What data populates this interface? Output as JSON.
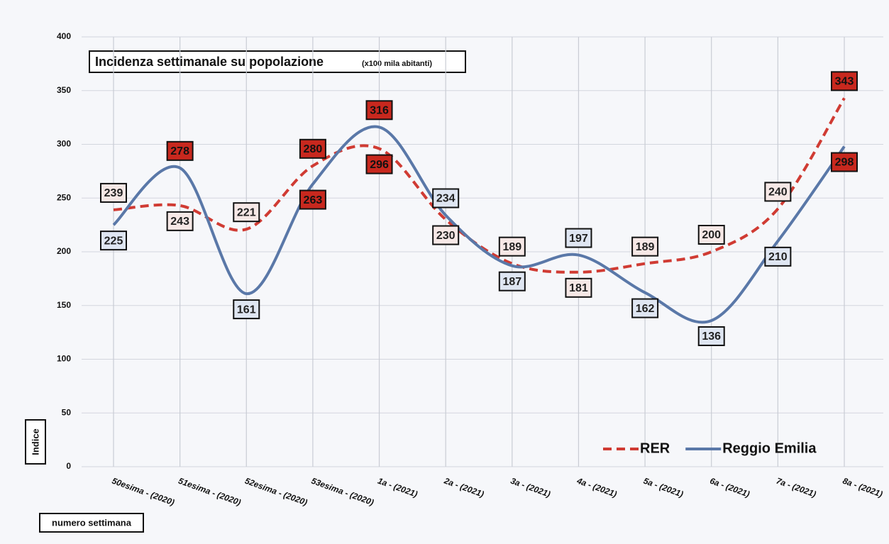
{
  "chart_data": {
    "type": "line",
    "title": "Incidenza settimanale su popolazione",
    "subtitle": "(x100 mila abitanti)",
    "y_label": "Indice",
    "x_label": "numero settimana",
    "categories": [
      "50esima - (2020)",
      "51esima - (2020)",
      "52esima - (2020)",
      "53esima - (2020)",
      "1a - (2021)",
      "2a - (2021)",
      "3a - (2021)",
      "4a - (2021)",
      "5a - (2021)",
      "6a - (2021)",
      "7a - (2021)",
      "8a - (2021)"
    ],
    "series": [
      {
        "name": "RER",
        "color": "#d03b33",
        "dashed": true,
        "values": [
          239,
          243,
          221,
          280,
          296,
          230,
          189,
          181,
          189,
          200,
          240,
          343
        ],
        "label_fill": [
          "#f6e8e6",
          "#f6e8e6",
          "#f6e8e6",
          "#c8281e",
          "#c8281e",
          "#f6e8e6",
          "#f6e8e6",
          "#f6e8e6",
          "#f6e8e6",
          "#f6e8e6",
          "#f6e8e6",
          "#c8281e"
        ]
      },
      {
        "name": "Reggio Emilia",
        "color": "#5a78a8",
        "dashed": false,
        "values": [
          225,
          278,
          161,
          263,
          316,
          234,
          187,
          197,
          162,
          136,
          210,
          298
        ],
        "label_fill": [
          "#dfe6f2",
          "#c8281e",
          "#dfe6f2",
          "#c8281e",
          "#c8281e",
          "#dfe6f2",
          "#dfe6f2",
          "#dfe6f2",
          "#dfe6f2",
          "#dfe6f2",
          "#dfe6f2",
          "#c8281e"
        ]
      }
    ],
    "ylim": [
      0,
      400
    ],
    "yticks": [
      0,
      50,
      100,
      150,
      200,
      250,
      300,
      350,
      400
    ],
    "grid": true,
    "legend": "bottom-right"
  }
}
